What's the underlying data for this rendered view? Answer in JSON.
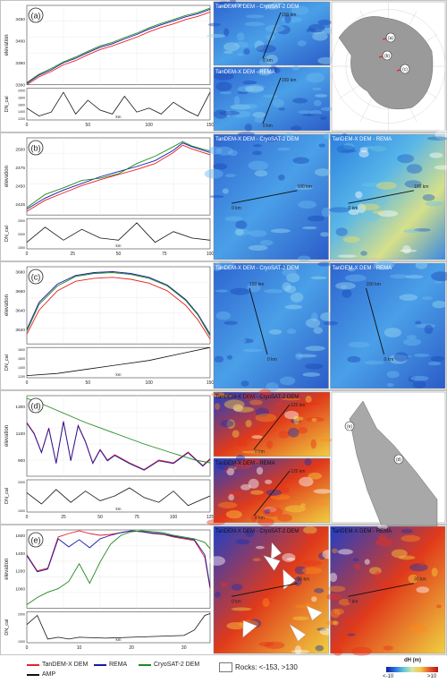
{
  "figure": {
    "colors": {
      "tandem": "#e8202a",
      "rema": "#1a1aa8",
      "cryosat": "#1f8a1f",
      "amp": "#111111"
    },
    "panels": [
      {
        "label": "(a)",
        "ylabel": "elevation",
        "ylabel2": "DN_cal",
        "xunit": "km",
        "yticks": [
          "3300",
          "3350",
          "3400",
          "3450"
        ],
        "y2ticks": [
          "2000",
          "1800",
          "1600",
          "1400",
          "1200"
        ],
        "xticks": [
          "0",
          "50",
          "100",
          "150"
        ],
        "xmax": 150,
        "map_titles": [
          "TanDEM-X DEM - CryoSAT-2 DEM",
          "TanDEM-X DEM - REMA"
        ],
        "markers": [
          "150 km",
          "0 km"
        ],
        "overview_labels": [
          "(a)",
          "(b)",
          "(c)"
        ]
      },
      {
        "label": "(b)",
        "ylabel": "elevation",
        "ylabel2": "DN_cal",
        "xunit": "km",
        "yticks": [
          "2425",
          "2450",
          "2475",
          "2500"
        ],
        "y2ticks": [
          "2500",
          "2000",
          "1500"
        ],
        "xticks": [
          "0",
          "25",
          "50",
          "75",
          "100"
        ],
        "xmax": 100,
        "map_titles": [
          "TanDEM-X DEM - CryoSAT-2 DEM",
          "TanDEM-X DEM - REMA"
        ],
        "markers": [
          "100 km",
          "0 km"
        ]
      },
      {
        "label": "(c)",
        "ylabel": "elevation",
        "ylabel2": "DN_cal",
        "xunit": "km",
        "yticks": [
          "3620",
          "3640",
          "3660",
          "3680"
        ],
        "y2ticks": [
          "1800",
          "1600",
          "1400",
          "1200"
        ],
        "xticks": [
          "0",
          "50",
          "100",
          "150"
        ],
        "xmax": 150,
        "map_titles": [
          "TanDEM-X DEM - CryoSAT-2 DEM",
          "TanDEM-X DEM - REMA"
        ],
        "markers": [
          "150 km",
          "0 km"
        ]
      },
      {
        "label": "(d)",
        "ylabel": "elevation",
        "ylabel2": "DN_cal",
        "xunit": "km",
        "yticks": [
          "900",
          "1100",
          "1300"
        ],
        "y2ticks": [
          "2000",
          "1000"
        ],
        "xticks": [
          "0",
          "25",
          "50",
          "75",
          "100",
          "125"
        ],
        "xmax": 125,
        "map_titles": [
          "TanDEM-X DEM - CryoSAT-2 DEM",
          "TanDEM-X DEM - REMA"
        ],
        "markers": [
          "125 km",
          "0 km"
        ],
        "overview_labels": [
          "(e)",
          "(d)"
        ]
      },
      {
        "label": "(e)",
        "ylabel": "elevation",
        "ylabel2": "DN_cal",
        "xunit": "km",
        "yticks": [
          "1000",
          "1200",
          "1400",
          "1600"
        ],
        "y2ticks": [
          "2000",
          "1000"
        ],
        "xticks": [
          "0",
          "10",
          "20",
          "30"
        ],
        "xmax": 35,
        "map_titles": [
          "TanDEM-X DEM - CryoSAT-2 DEM",
          "TanDEM-X DEM - REMA"
        ],
        "markers": [
          "30 km",
          "0 km"
        ]
      }
    ]
  },
  "chart_data": [
    {
      "type": "line",
      "panel": "(a)",
      "xlabel": "km",
      "ylabel": "elevation",
      "xlim": [
        0,
        150
      ],
      "ylim": [
        3300,
        3480
      ],
      "series": [
        {
          "name": "TanDEM-X DEM",
          "x": [
            0,
            10,
            20,
            30,
            40,
            50,
            60,
            70,
            80,
            90,
            100,
            110,
            120,
            130,
            140,
            150
          ],
          "values": [
            3300,
            3318,
            3330,
            3345,
            3355,
            3368,
            3380,
            3388,
            3398,
            3408,
            3420,
            3430,
            3438,
            3448,
            3455,
            3465
          ]
        },
        {
          "name": "REMA",
          "x": [
            0,
            10,
            20,
            30,
            40,
            50,
            60,
            70,
            80,
            90,
            100,
            110,
            120,
            130,
            140,
            150
          ],
          "values": [
            3303,
            3322,
            3334,
            3350,
            3360,
            3373,
            3385,
            3393,
            3404,
            3414,
            3426,
            3436,
            3445,
            3454,
            3461,
            3471
          ]
        },
        {
          "name": "CryoSAT-2 DEM",
          "x": [
            0,
            10,
            20,
            30,
            40,
            50,
            60,
            70,
            80,
            90,
            100,
            110,
            120,
            130,
            140,
            150
          ],
          "values": [
            3305,
            3324,
            3337,
            3352,
            3363,
            3376,
            3388,
            3396,
            3407,
            3417,
            3429,
            3439,
            3448,
            3457,
            3464,
            3474
          ]
        }
      ],
      "amp": {
        "name": "AMP",
        "x": [
          0,
          10,
          20,
          30,
          40,
          50,
          60,
          70,
          80,
          90,
          100,
          110,
          120,
          130,
          140,
          150
        ],
        "values": [
          1500,
          1300,
          1400,
          1900,
          1350,
          1700,
          1450,
          1350,
          1800,
          1400,
          1500,
          1350,
          1650,
          1450,
          1300,
          1900
        ],
        "ylim": [
          1200,
          2000
        ]
      }
    },
    {
      "type": "line",
      "panel": "(b)",
      "xlabel": "km",
      "ylabel": "elevation",
      "xlim": [
        0,
        100
      ],
      "ylim": [
        2410,
        2515
      ],
      "series": [
        {
          "name": "TanDEM-X DEM",
          "x": [
            0,
            10,
            20,
            30,
            40,
            50,
            60,
            70,
            80,
            85,
            90,
            100
          ],
          "values": [
            2415,
            2430,
            2440,
            2450,
            2458,
            2465,
            2472,
            2480,
            2495,
            2505,
            2500,
            2492
          ]
        },
        {
          "name": "REMA",
          "x": [
            0,
            10,
            20,
            30,
            40,
            50,
            60,
            70,
            80,
            85,
            90,
            100
          ],
          "values": [
            2418,
            2433,
            2444,
            2453,
            2462,
            2469,
            2476,
            2484,
            2498,
            2508,
            2503,
            2495
          ]
        },
        {
          "name": "CryoSAT-2 DEM",
          "x": [
            0,
            10,
            20,
            30,
            40,
            50,
            60,
            70,
            80,
            85,
            90,
            100
          ],
          "values": [
            2420,
            2438,
            2447,
            2457,
            2460,
            2466,
            2480,
            2490,
            2503,
            2510,
            2504,
            2497
          ]
        }
      ],
      "amp": {
        "name": "AMP",
        "x": [
          0,
          10,
          20,
          30,
          40,
          50,
          60,
          70,
          80,
          90,
          100
        ],
        "values": [
          1500,
          2200,
          1600,
          2100,
          1700,
          1600,
          2400,
          1500,
          2000,
          1700,
          1600
        ],
        "ylim": [
          1200,
          2600
        ]
      }
    },
    {
      "type": "line",
      "panel": "(c)",
      "xlabel": "km",
      "ylabel": "elevation",
      "xlim": [
        0,
        150
      ],
      "ylim": [
        3605,
        3685
      ],
      "series": [
        {
          "name": "TanDEM-X DEM",
          "x": [
            0,
            10,
            25,
            40,
            55,
            70,
            85,
            100,
            115,
            130,
            140,
            150
          ],
          "values": [
            3615,
            3640,
            3660,
            3670,
            3673,
            3674,
            3672,
            3668,
            3660,
            3645,
            3630,
            3610
          ]
        },
        {
          "name": "REMA",
          "x": [
            0,
            10,
            25,
            40,
            55,
            70,
            85,
            100,
            115,
            130,
            140,
            150
          ],
          "values": [
            3620,
            3648,
            3667,
            3676,
            3679,
            3680,
            3678,
            3674,
            3666,
            3651,
            3636,
            3615
          ]
        },
        {
          "name": "CryoSAT-2 DEM",
          "x": [
            0,
            10,
            25,
            40,
            55,
            70,
            85,
            100,
            115,
            130,
            140,
            150
          ],
          "values": [
            3618,
            3646,
            3665,
            3675,
            3678,
            3679,
            3677,
            3673,
            3665,
            3650,
            3635,
            3613
          ]
        }
      ],
      "amp": {
        "name": "AMP",
        "x": [
          0,
          25,
          50,
          75,
          100,
          125,
          150
        ],
        "values": [
          1250,
          1300,
          1400,
          1500,
          1600,
          1750,
          1900
        ],
        "ylim": [
          1200,
          1900
        ]
      }
    },
    {
      "type": "line",
      "panel": "(d)",
      "xlabel": "km",
      "ylabel": "elevation",
      "xlim": [
        0,
        125
      ],
      "ylim": [
        780,
        1380
      ],
      "series": [
        {
          "name": "TanDEM-X DEM",
          "x": [
            0,
            5,
            10,
            15,
            20,
            25,
            30,
            35,
            40,
            45,
            50,
            55,
            60,
            70,
            80,
            90,
            100,
            110,
            120,
            125
          ],
          "values": [
            1180,
            1100,
            960,
            1140,
            880,
            1190,
            900,
            1160,
            1040,
            880,
            980,
            900,
            940,
            880,
            830,
            900,
            880,
            960,
            860,
            910
          ]
        },
        {
          "name": "REMA",
          "x": [
            0,
            5,
            10,
            15,
            20,
            25,
            30,
            35,
            40,
            45,
            50,
            55,
            60,
            70,
            80,
            90,
            100,
            110,
            120,
            125
          ],
          "values": [
            1175,
            1095,
            955,
            1135,
            875,
            1185,
            895,
            1155,
            1035,
            875,
            975,
            895,
            935,
            875,
            825,
            895,
            875,
            955,
            855,
            905
          ]
        },
        {
          "name": "CryoSAT-2 DEM",
          "x": [
            0,
            10,
            25,
            40,
            60,
            80,
            100,
            115,
            125
          ],
          "values": [
            1360,
            1320,
            1250,
            1180,
            1100,
            1020,
            950,
            900,
            880
          ]
        }
      ],
      "amp": {
        "name": "AMP",
        "x": [
          0,
          10,
          20,
          30,
          40,
          50,
          60,
          70,
          80,
          90,
          100,
          110,
          125
        ],
        "values": [
          1400,
          700,
          1600,
          800,
          1500,
          900,
          1200,
          1700,
          1100,
          800,
          1500,
          600,
          1200
        ],
        "ylim": [
          200,
          2200
        ]
      }
    },
    {
      "type": "line",
      "panel": "(e)",
      "xlabel": "km",
      "ylabel": "elevation",
      "xlim": [
        0,
        35
      ],
      "ylim": [
        780,
        1660
      ],
      "series": [
        {
          "name": "TanDEM-X DEM",
          "x": [
            0,
            2,
            4,
            6,
            8,
            10,
            12,
            14,
            16,
            18,
            20,
            22,
            24,
            26,
            28,
            30,
            32,
            34,
            35
          ],
          "values": [
            1380,
            1200,
            1230,
            1580,
            1620,
            1650,
            1620,
            1600,
            1610,
            1630,
            1650,
            1640,
            1620,
            1610,
            1580,
            1560,
            1540,
            1350,
            1000
          ]
        },
        {
          "name": "REMA",
          "x": [
            0,
            2,
            4,
            6,
            8,
            10,
            12,
            14,
            16,
            18,
            20,
            22,
            24,
            26,
            28,
            30,
            32,
            34,
            35
          ],
          "values": [
            1370,
            1190,
            1220,
            1560,
            1470,
            1550,
            1460,
            1560,
            1600,
            1630,
            1650,
            1640,
            1625,
            1615,
            1590,
            1570,
            1550,
            1380,
            1020
          ]
        },
        {
          "name": "CryoSAT-2 DEM",
          "x": [
            0,
            2,
            4,
            6,
            8,
            10,
            12,
            14,
            16,
            18,
            20,
            22,
            24,
            26,
            28,
            30,
            32,
            34,
            35
          ],
          "values": [
            820,
            900,
            960,
            1000,
            1080,
            1280,
            1060,
            1300,
            1500,
            1600,
            1640,
            1650,
            1640,
            1630,
            1600,
            1580,
            1560,
            1520,
            1450
          ]
        }
      ],
      "amp": {
        "name": "AMP",
        "x": [
          0,
          2,
          4,
          6,
          8,
          10,
          15,
          20,
          25,
          30,
          32,
          34,
          35
        ],
        "values": [
          1500,
          2000,
          700,
          800,
          700,
          800,
          750,
          800,
          850,
          900,
          1200,
          2000,
          2100
        ],
        "ylim": [
          500,
          2200
        ]
      }
    }
  ],
  "legend": {
    "items": [
      {
        "label": "TanDEM-X DEM",
        "color": "#e8202a"
      },
      {
        "label": "REMA",
        "color": "#1a1aa8"
      },
      {
        "label": "CryoSAT-2 DEM",
        "color": "#1f8a1f"
      },
      {
        "label": "AMP",
        "color": "#111111"
      }
    ],
    "rocks_label": "Rocks: <-153, >130",
    "colorbar_title": "dH (m)",
    "colorbar_min": "<-10",
    "colorbar_max": ">10"
  }
}
